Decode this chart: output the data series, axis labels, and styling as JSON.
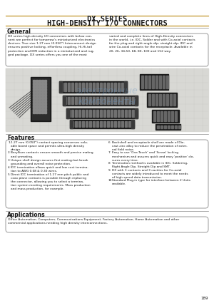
{
  "title_line1": "DX SERIES",
  "title_line2": "HIGH-DENSITY I/O CONNECTORS",
  "page_bg": "#ffffff",
  "section_general_title": "General",
  "gen_text1": "DX series high-density I/O connectors with below con-\nnent are perfect for tomorrow's miniaturized electronics\ndevices. True size 1.27 mm (0.050\") Interconnect design\nensures positive locking, effortless coupling, Hi-Hi-tail\nprotection and EMI reduction in a miniaturized and rug-\nged package. DX series offers you one of the most",
  "gen_text2": "varied and complete lines of High-Density connectors\nin the world, i.e. IDC, Solder and with Co-axial contacts\nfor the plug and right angle dip, straight dip, IDC and\nwire Co-axial contacts for the receptacle. Available in\n20, 26, 34,50, 68, 80, 100 and 152 way.",
  "section_features_title": "Features",
  "feat_left": [
    "1.27 mm (0.050\") contact spacing conserves valu-\nable board space and permits ultra-high density\ndesign.",
    "Beryllium contacts ensure smooth and precise mating\nand unmating.",
    "Unique shell design assures first mating-last break\ngrounding and overall noise protection.",
    "IDC termination allows quick and low cost termina-\ntion to AWG 0.08 & 0.30 wires.",
    "Direct IDC termination of 1.27 mm pitch public and\ncoax plane contacts is possible through replacing\nthe connector, allowing you to select a termina-\ntion system meeting requirements. Mass production\nand mass production, for example."
  ],
  "feat_right": [
    "Backshell and receptacle shell are made of Die-\ncast zinc alloy to reduce the penetration of exter-\nnal field noise.",
    "Easy to use 'One-Touch' and 'Screw' locking\nmechanism and assures quick and easy 'positive' clo-\nsures every time.",
    "Termination method is available in IDC, Soldering,\nRight Angle Dip, Straight Dip and SMT.",
    "DX with 3 contacts and 3 cavities for Co-axial\ncontacts are widely introduced to meet the needs\nof high speed data transmission.",
    "Standard Plug-in type for interface between 2 Units\navailable."
  ],
  "section_applications_title": "Applications",
  "applications_text": "Office Automation, Computers, Communications Equipment, Factory Automation, Home Automation and other\ncommercial applications needing high density interconnections.",
  "page_number": "189",
  "title_color": "#1a1a1a",
  "header_line_color": "#b8860b",
  "body_text_color": "#1a1a1a"
}
